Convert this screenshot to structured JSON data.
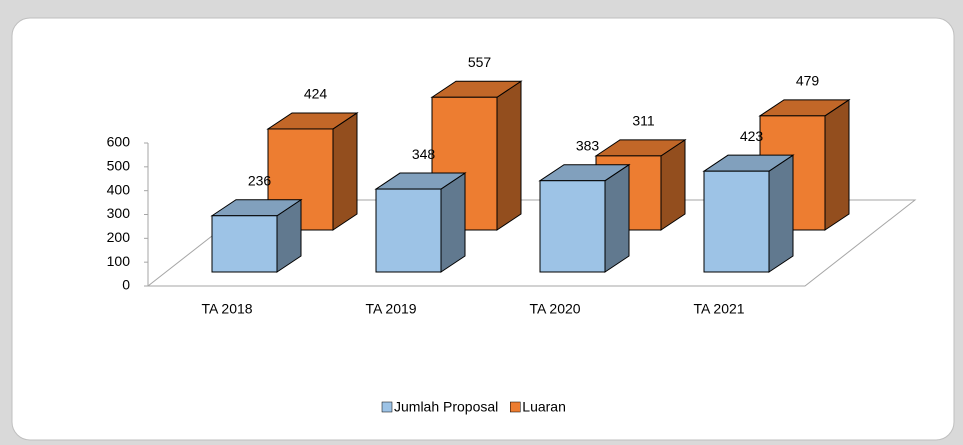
{
  "chart_data": {
    "type": "bar3d",
    "categories": [
      "TA 2018",
      "TA 2019",
      "TA 2020",
      "TA 2021"
    ],
    "series": [
      {
        "name": "Jumlah Proposal",
        "color": "#9dc3e6",
        "values": [
          236,
          348,
          383,
          423
        ]
      },
      {
        "name": "Luaran",
        "color": "#ed7d31",
        "values": [
          424,
          557,
          311,
          479
        ]
      }
    ],
    "ylim": [
      0,
      600
    ],
    "yticks": [
      0,
      100,
      200,
      300,
      400,
      500,
      600
    ],
    "legend": "bottom"
  }
}
